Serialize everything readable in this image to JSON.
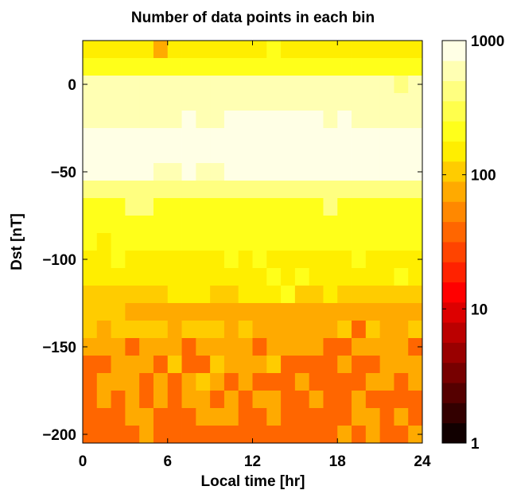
{
  "chart_data": {
    "type": "heatmap",
    "title": "Number of data points in each bin",
    "xlabel": "Local time [hr]",
    "ylabel": "Dst [nT]",
    "xlim": [
      0,
      24
    ],
    "ylim": [
      -205,
      25
    ],
    "x_ticks": [
      0,
      6,
      12,
      18,
      24
    ],
    "x_tick_labels": [
      "0",
      "6",
      "12",
      "18",
      "24"
    ],
    "y_ticks": [
      0,
      -50,
      -100,
      -150,
      -200
    ],
    "y_tick_labels": [
      "0",
      "−50",
      "−100",
      "−150",
      "−200"
    ],
    "x_bin_width_hr": 1,
    "y_bin_width_nT": 10,
    "y_bin_centers": [
      20,
      10,
      0,
      -10,
      -20,
      -30,
      -40,
      -50,
      -60,
      -70,
      -80,
      -90,
      -100,
      -110,
      -120,
      -130,
      -140,
      -150,
      -160,
      -170,
      -180,
      -190,
      -200
    ],
    "colorbar": {
      "scale": "log",
      "range": [
        1,
        1000
      ],
      "ticks": [
        1,
        10,
        100,
        1000
      ],
      "tick_labels": [
        "1",
        "10",
        "100",
        "1000"
      ],
      "levels": 20,
      "colormap": "hot (black → red → orange → yellow → white)"
    },
    "counts_log10": [
      [
        2.1,
        2.1,
        2.1,
        2.1,
        2.1,
        1.9,
        2.1,
        2.1,
        2.1,
        2.1,
        2.1,
        2.1,
        2.1,
        2.3,
        2.1,
        2.1,
        2.1,
        2.1,
        2.1,
        2.1,
        2.1,
        2.1,
        2.1,
        2.1
      ],
      [
        2.25,
        2.4,
        2.4,
        2.4,
        2.4,
        2.4,
        2.4,
        2.4,
        2.4,
        2.4,
        2.4,
        2.25,
        2.4,
        2.4,
        2.4,
        2.4,
        2.4,
        2.4,
        2.4,
        2.4,
        2.4,
        2.4,
        2.4,
        2.25
      ],
      [
        2.7,
        2.7,
        2.7,
        2.7,
        2.7,
        2.7,
        2.7,
        2.7,
        2.7,
        2.7,
        2.7,
        2.7,
        2.7,
        2.7,
        2.7,
        2.7,
        2.7,
        2.7,
        2.7,
        2.7,
        2.7,
        2.7,
        2.55,
        2.7
      ],
      [
        2.7,
        2.7,
        2.7,
        2.7,
        2.7,
        2.7,
        2.7,
        2.7,
        2.7,
        2.7,
        2.7,
        2.7,
        2.7,
        2.7,
        2.7,
        2.7,
        2.7,
        2.7,
        2.7,
        2.7,
        2.7,
        2.7,
        2.7,
        2.7
      ],
      [
        2.7,
        2.7,
        2.7,
        2.7,
        2.7,
        2.7,
        2.7,
        3.0,
        2.7,
        2.7,
        3.0,
        3.0,
        3.0,
        3.0,
        3.0,
        3.0,
        3.0,
        2.7,
        3.0,
        2.7,
        2.7,
        2.7,
        2.7,
        2.7
      ],
      [
        3.0,
        3.0,
        3.0,
        3.0,
        3.0,
        3.0,
        3.0,
        3.0,
        3.0,
        3.0,
        3.0,
        3.0,
        3.0,
        3.0,
        3.0,
        3.0,
        3.0,
        3.0,
        3.0,
        3.0,
        3.0,
        3.0,
        3.0,
        3.0
      ],
      [
        3.0,
        3.0,
        3.0,
        3.0,
        3.0,
        3.0,
        3.0,
        3.0,
        3.0,
        3.0,
        3.0,
        3.0,
        3.0,
        3.0,
        3.0,
        3.0,
        3.0,
        3.0,
        3.0,
        3.0,
        3.0,
        3.0,
        3.0,
        3.0
      ],
      [
        3.0,
        3.0,
        3.0,
        3.0,
        3.0,
        2.7,
        2.7,
        3.0,
        2.7,
        2.7,
        3.0,
        3.0,
        3.0,
        3.0,
        3.0,
        3.0,
        3.0,
        3.0,
        3.0,
        3.0,
        3.0,
        3.0,
        3.0,
        3.0
      ],
      [
        2.55,
        2.55,
        2.55,
        2.55,
        2.55,
        2.55,
        2.55,
        2.55,
        2.55,
        2.55,
        2.55,
        2.55,
        2.55,
        2.55,
        2.55,
        2.55,
        2.55,
        2.55,
        2.55,
        2.55,
        2.55,
        2.55,
        2.55,
        2.55
      ],
      [
        2.4,
        2.4,
        2.4,
        2.55,
        2.55,
        2.4,
        2.4,
        2.4,
        2.4,
        2.4,
        2.4,
        2.4,
        2.4,
        2.4,
        2.4,
        2.4,
        2.4,
        2.55,
        2.4,
        2.4,
        2.4,
        2.4,
        2.4,
        2.4
      ],
      [
        2.25,
        2.4,
        2.25,
        2.25,
        2.4,
        2.4,
        2.4,
        2.4,
        2.25,
        2.4,
        2.4,
        2.4,
        2.4,
        2.25,
        2.4,
        2.4,
        2.4,
        2.4,
        2.4,
        2.4,
        2.4,
        2.4,
        2.4,
        2.25
      ],
      [
        2.25,
        2.1,
        2.4,
        2.25,
        2.25,
        2.25,
        2.25,
        2.25,
        2.25,
        2.25,
        2.25,
        2.25,
        2.25,
        2.25,
        2.25,
        2.25,
        2.25,
        2.25,
        2.25,
        2.25,
        2.25,
        2.25,
        2.4,
        2.25
      ],
      [
        2.1,
        2.1,
        2.25,
        2.1,
        2.1,
        2.1,
        2.1,
        2.1,
        2.1,
        2.1,
        2.25,
        2.1,
        2.25,
        2.1,
        2.1,
        2.1,
        2.1,
        2.1,
        2.1,
        2.25,
        2.1,
        2.1,
        2.1,
        2.1
      ],
      [
        2.1,
        2.1,
        2.1,
        2.1,
        2.1,
        2.1,
        2.1,
        2.1,
        2.1,
        2.1,
        2.1,
        2.1,
        2.1,
        2.25,
        2.1,
        2.25,
        2.1,
        2.1,
        2.1,
        2.1,
        2.1,
        2.1,
        2.25,
        2.1
      ],
      [
        1.95,
        1.95,
        1.95,
        1.95,
        1.95,
        1.95,
        2.1,
        2.1,
        2.1,
        1.95,
        1.95,
        2.1,
        2.1,
        2.1,
        2.25,
        1.95,
        1.95,
        2.1,
        1.95,
        1.95,
        1.95,
        1.95,
        1.95,
        1.95
      ],
      [
        1.95,
        1.95,
        1.95,
        1.8,
        1.8,
        1.8,
        1.8,
        1.8,
        1.8,
        1.8,
        1.8,
        1.8,
        1.8,
        1.8,
        1.8,
        1.8,
        1.8,
        1.8,
        1.8,
        1.8,
        1.8,
        1.8,
        1.8,
        1.8
      ],
      [
        1.95,
        1.8,
        1.95,
        1.95,
        1.95,
        1.95,
        1.8,
        1.95,
        1.95,
        1.95,
        1.8,
        1.95,
        1.8,
        1.8,
        1.8,
        1.8,
        1.8,
        1.8,
        1.95,
        1.65,
        1.95,
        1.8,
        1.8,
        1.95
      ],
      [
        1.8,
        1.8,
        1.8,
        1.5,
        1.8,
        1.8,
        1.8,
        1.5,
        1.8,
        1.8,
        1.8,
        1.8,
        1.5,
        1.8,
        1.8,
        1.8,
        1.8,
        1.65,
        1.65,
        1.8,
        1.8,
        1.8,
        1.8,
        1.5
      ],
      [
        1.65,
        1.65,
        1.8,
        1.8,
        1.8,
        1.65,
        1.95,
        1.65,
        1.65,
        1.95,
        1.8,
        1.8,
        1.8,
        1.95,
        1.65,
        1.65,
        1.65,
        1.65,
        1.8,
        1.65,
        1.5,
        1.8,
        1.8,
        1.8
      ],
      [
        1.65,
        1.8,
        1.8,
        1.8,
        1.65,
        1.8,
        1.65,
        1.8,
        1.95,
        1.8,
        1.65,
        1.8,
        1.65,
        1.5,
        1.65,
        1.8,
        1.65,
        1.65,
        1.5,
        1.65,
        1.8,
        1.8,
        1.65,
        1.8
      ],
      [
        1.5,
        1.8,
        1.65,
        1.8,
        1.65,
        1.8,
        1.5,
        1.8,
        1.8,
        1.5,
        1.8,
        1.65,
        1.8,
        1.8,
        1.65,
        1.5,
        1.8,
        1.65,
        1.5,
        1.8,
        1.5,
        1.65,
        1.65,
        1.5
      ],
      [
        1.5,
        1.5,
        1.65,
        1.8,
        1.8,
        1.5,
        1.5,
        1.5,
        1.8,
        1.8,
        1.8,
        1.5,
        1.5,
        1.8,
        1.5,
        1.5,
        1.5,
        1.65,
        1.5,
        1.8,
        1.8,
        1.65,
        1.8,
        1.65
      ],
      [
        1.5,
        1.5,
        1.65,
        1.5,
        1.8,
        1.65,
        1.5,
        1.65,
        1.5,
        1.5,
        1.5,
        1.65,
        1.65,
        1.5,
        1.65,
        1.5,
        1.65,
        1.5,
        1.8,
        1.65,
        1.8,
        1.65,
        1.5,
        1.8
      ]
    ]
  }
}
